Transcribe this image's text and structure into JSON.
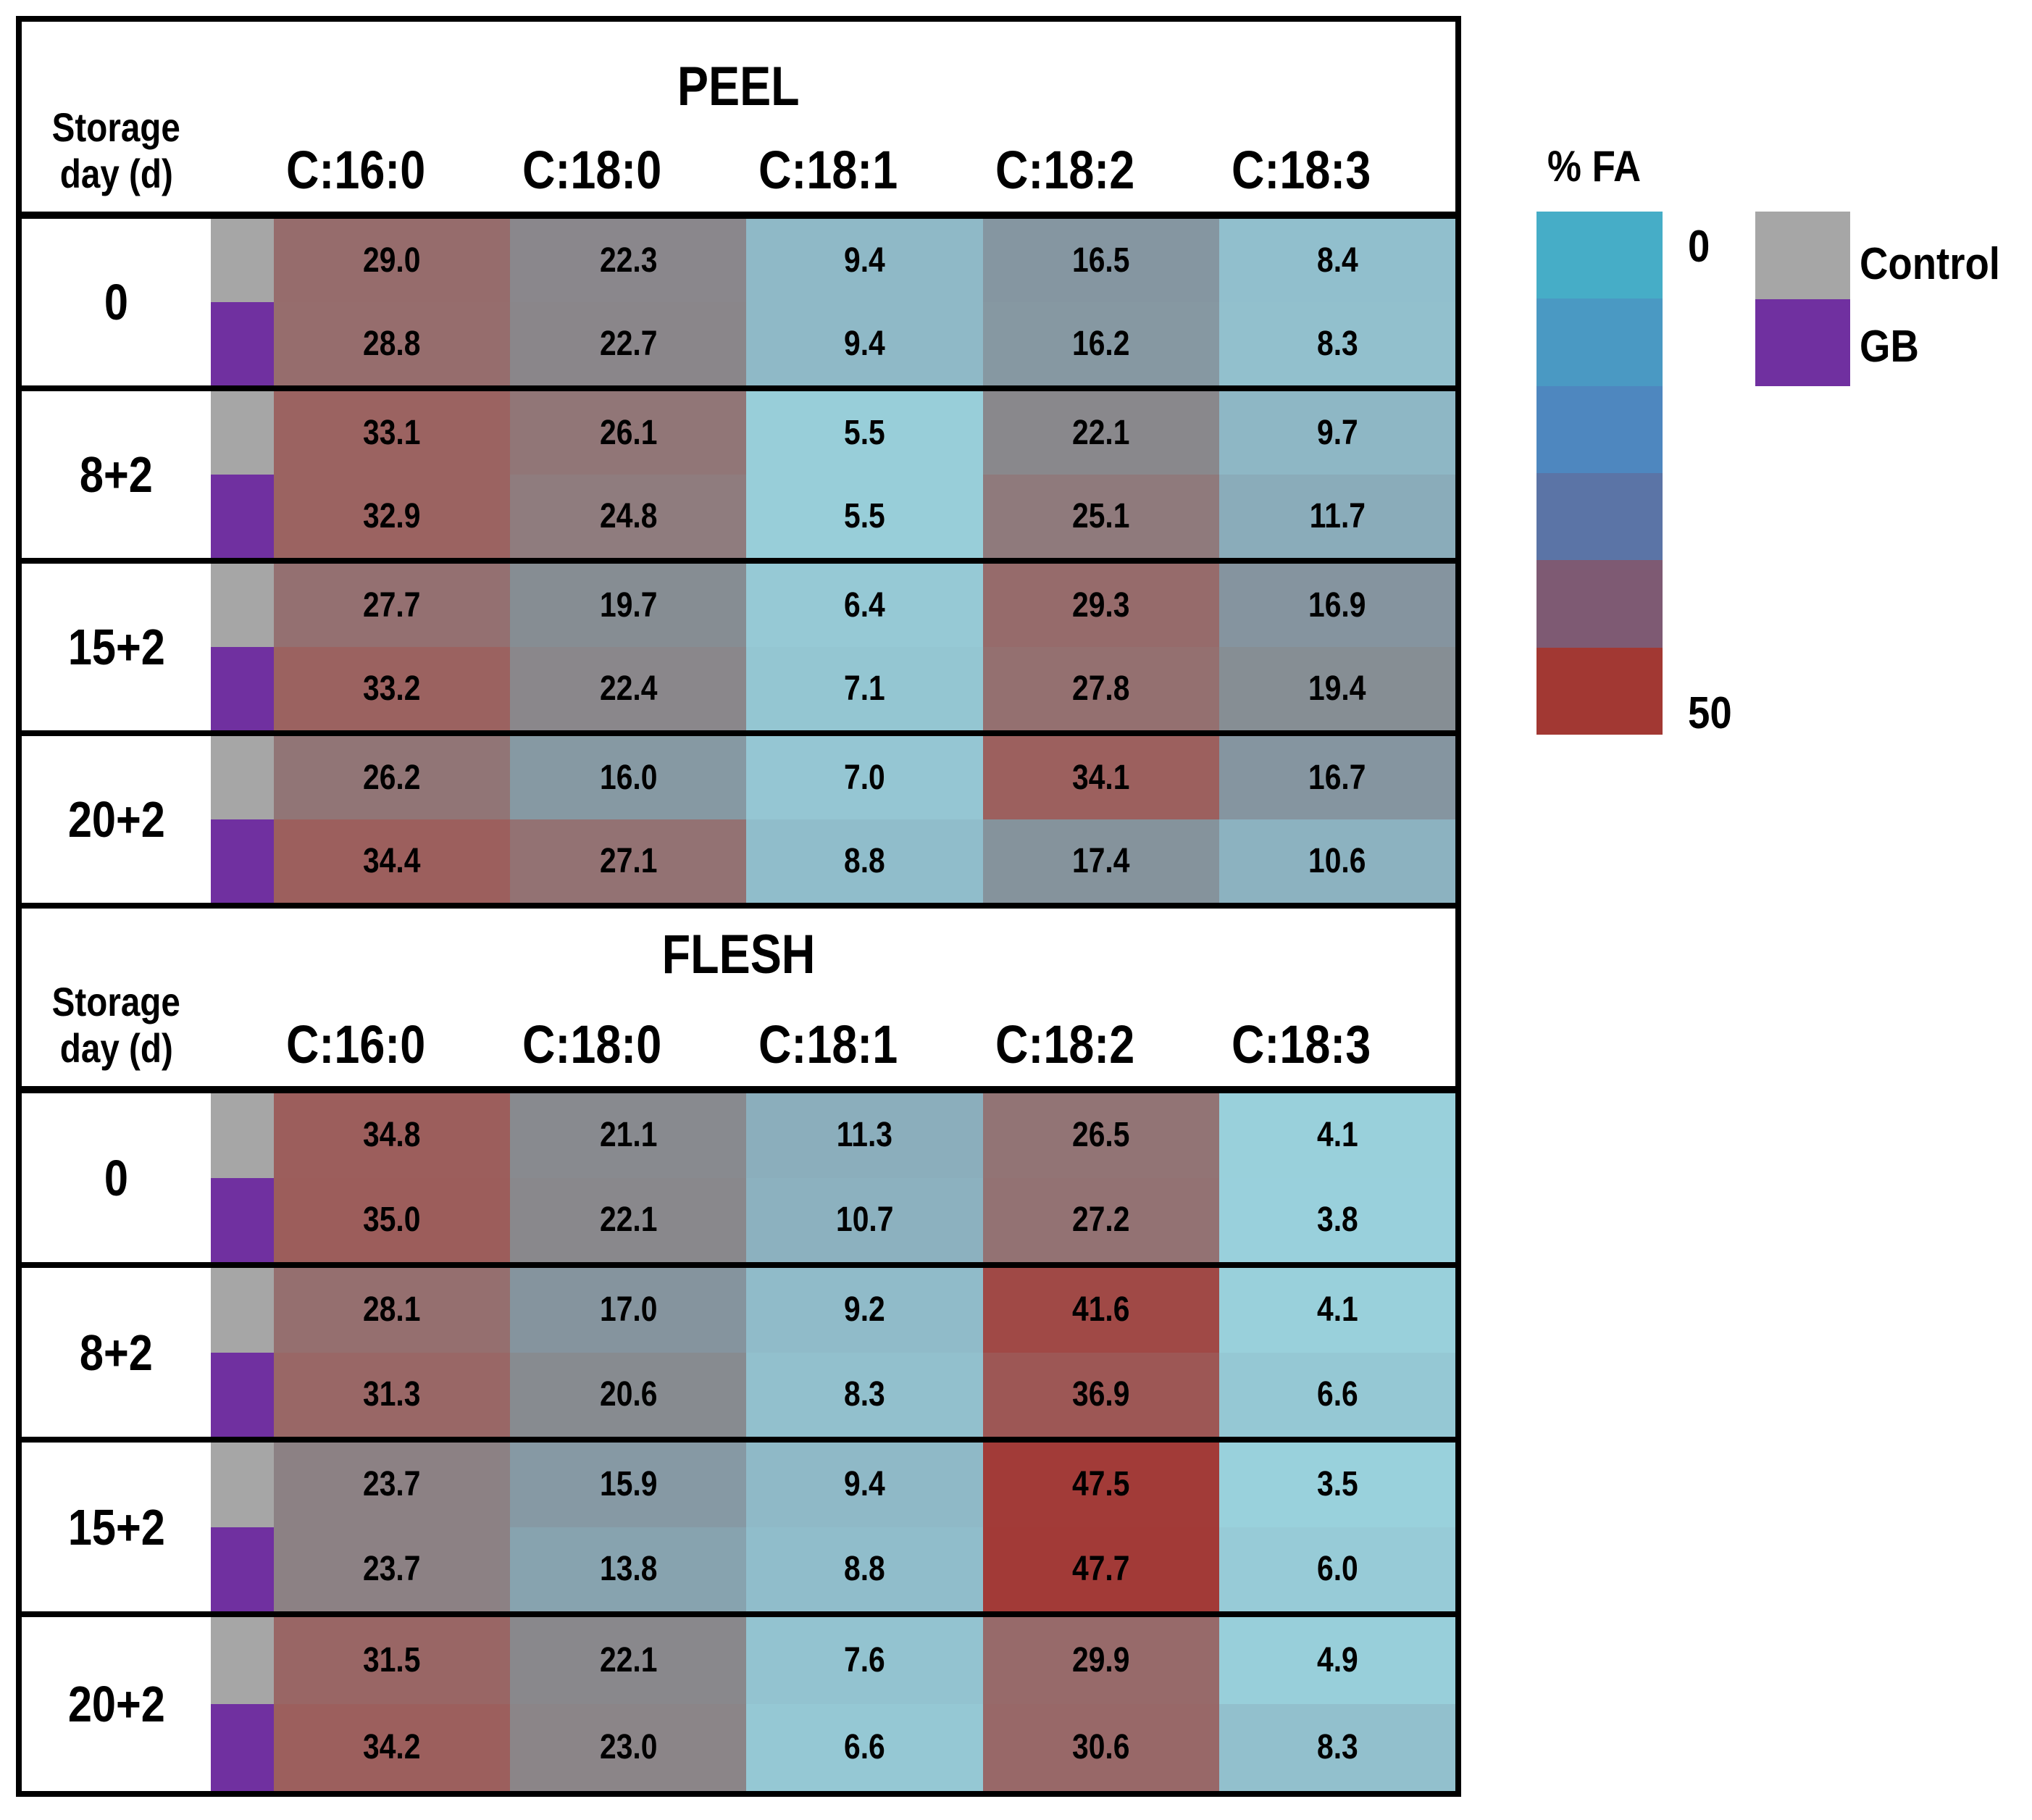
{
  "chart_data": {
    "type": "heatmap",
    "row_header_lines": [
      "Storage",
      "day (d)"
    ],
    "columns": [
      "C:16:0",
      "C:18:0",
      "C:18:1",
      "C:18:2",
      "C:18:3"
    ],
    "sections": [
      {
        "title": "PEEL",
        "rows": [
          {
            "day": "0",
            "control": [
              "29.0",
              "22.3",
              "9.4",
              "16.5",
              "8.4"
            ],
            "gb": [
              "28.8",
              "22.7",
              "9.4",
              "16.2",
              "8.3"
            ]
          },
          {
            "day": "8+2",
            "control": [
              "33.1",
              "26.1",
              "5.5",
              "22.1",
              "9.7"
            ],
            "gb": [
              "32.9",
              "24.8",
              "5.5",
              "25.1",
              "11.7"
            ]
          },
          {
            "day": "15+2",
            "control": [
              "27.7",
              "19.7",
              "6.4",
              "29.3",
              "16.9"
            ],
            "gb": [
              "33.2",
              "22.4",
              "7.1",
              "27.8",
              "19.4"
            ]
          },
          {
            "day": "20+2",
            "control": [
              "26.2",
              "16.0",
              "7.0",
              "34.1",
              "16.7"
            ],
            "gb": [
              "34.4",
              "27.1",
              "8.8",
              "17.4",
              "10.6"
            ]
          }
        ]
      },
      {
        "title": "FLESH",
        "rows": [
          {
            "day": "0",
            "control": [
              "34.8",
              "21.1",
              "11.3",
              "26.5",
              "4.1"
            ],
            "gb": [
              "35.0",
              "22.1",
              "10.7",
              "27.2",
              "3.8"
            ]
          },
          {
            "day": "8+2",
            "control": [
              "28.1",
              "17.0",
              "9.2",
              "41.6",
              "4.1"
            ],
            "gb": [
              "31.3",
              "20.6",
              "8.3",
              "36.9",
              "6.6"
            ]
          },
          {
            "day": "15+2",
            "control": [
              "23.7",
              "15.9",
              "9.4",
              "47.5",
              "3.5"
            ],
            "gb": [
              "23.7",
              "13.8",
              "8.8",
              "47.7",
              "6.0"
            ]
          },
          {
            "day": "20+2",
            "control": [
              "31.5",
              "22.1",
              "7.6",
              "29.9",
              "4.9"
            ],
            "gb": [
              "34.2",
              "23.0",
              "6.6",
              "30.6",
              "8.3"
            ]
          }
        ]
      }
    ],
    "legend": {
      "title": "% FA",
      "min_label": "0",
      "max_label": "50",
      "min_value": 0,
      "max_value": 50,
      "colors": [
        "#46ADC7",
        "#4A99C3",
        "#4E87BF",
        "#5B74A6",
        "#7E5A73",
        "#A23833"
      ],
      "series": [
        {
          "label": "Control",
          "color": "#A6A6A6"
        },
        {
          "label": "GB",
          "color": "#7030A0"
        }
      ]
    },
    "colormap_stops": [
      [
        0,
        "#9CD6E2"
      ],
      [
        5.5,
        "#98CED9"
      ],
      [
        9,
        "#90BCCA"
      ],
      [
        11,
        "#8BAFBD"
      ],
      [
        14,
        "#87A2AE"
      ],
      [
        17,
        "#85949E"
      ],
      [
        20,
        "#868C92"
      ],
      [
        22.5,
        "#8A878B"
      ],
      [
        26,
        "#917677"
      ],
      [
        29,
        "#966C6C"
      ],
      [
        33,
        "#9B6361"
      ],
      [
        36,
        "#9D5A58"
      ],
      [
        42,
        "#A04845"
      ],
      [
        50,
        "#A33532"
      ]
    ]
  }
}
